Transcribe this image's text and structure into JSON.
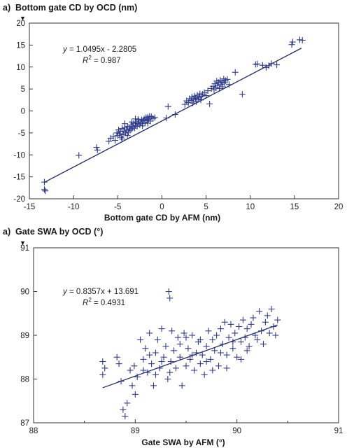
{
  "chart_data": [
    {
      "type": "scatter",
      "panel_label": "a)",
      "title": "Bottom gate CD by OCD (nm)",
      "xlabel": "Bottom gate CD by AFM (nm)",
      "ylabel": "",
      "xlim": [
        -15,
        20
      ],
      "ylim": [
        -20,
        20
      ],
      "xticks": [
        -15,
        -10,
        -5,
        0,
        5,
        10,
        15,
        20
      ],
      "yticks": [
        -20,
        -15,
        -10,
        -5,
        0,
        5,
        10,
        15,
        20
      ],
      "grid": false,
      "marker_color": "#2e3b8c",
      "fit_color": "#1f2a6e",
      "annotation": {
        "eq_prefix": "y",
        "eq_body": " = 1.0495x - 2.2805",
        "r2_prefix": "R",
        "r2_sup": "2",
        "r2_body": " = 0.987"
      },
      "fit": {
        "slope": 1.0495,
        "intercept": -2.2805,
        "x_range": [
          -13.3,
          15.8
        ]
      },
      "points": [
        [
          -13.3,
          -16.2
        ],
        [
          -13.3,
          -17.9
        ],
        [
          -13.2,
          -18.2
        ],
        [
          -9.4,
          -10.1
        ],
        [
          -7.4,
          -8.3
        ],
        [
          -7.3,
          -8.9
        ],
        [
          -6.0,
          -6.9
        ],
        [
          -5.8,
          -6.2
        ],
        [
          -5.5,
          -5.8
        ],
        [
          -5.3,
          -6.7
        ],
        [
          -5.1,
          -5.0
        ],
        [
          -5.0,
          -5.6
        ],
        [
          -4.9,
          -4.3
        ],
        [
          -4.8,
          -5.2
        ],
        [
          -4.7,
          -4.7
        ],
        [
          -4.6,
          -6.0
        ],
        [
          -4.5,
          -4.0
        ],
        [
          -4.4,
          -5.4
        ],
        [
          -4.3,
          -4.6
        ],
        [
          -4.2,
          -3.8
        ],
        [
          -4.1,
          -5.0
        ],
        [
          -4.0,
          -4.3
        ],
        [
          -3.9,
          -3.5
        ],
        [
          -3.8,
          -4.8
        ],
        [
          -3.7,
          -3.9
        ],
        [
          -3.6,
          -4.4
        ],
        [
          -3.5,
          -3.2
        ],
        [
          -3.4,
          -4.1
        ],
        [
          -3.3,
          -3.6
        ],
        [
          -3.2,
          -2.8
        ],
        [
          -3.1,
          -3.9
        ],
        [
          -3.0,
          -3.3
        ],
        [
          -2.9,
          -2.6
        ],
        [
          -2.8,
          -3.5
        ],
        [
          -2.7,
          -2.9
        ],
        [
          -2.6,
          -2.3
        ],
        [
          -2.5,
          -3.2
        ],
        [
          -2.4,
          -2.6
        ],
        [
          -2.3,
          -2.0
        ],
        [
          -2.2,
          -2.9
        ],
        [
          -2.1,
          -2.2
        ],
        [
          -2.0,
          -1.8
        ],
        [
          -1.9,
          -2.6
        ],
        [
          -1.8,
          -1.5
        ],
        [
          -1.7,
          -2.2
        ],
        [
          -1.6,
          -1.4
        ],
        [
          -1.5,
          -1.9
        ],
        [
          -1.4,
          -1.2
        ],
        [
          -1.3,
          -2.3
        ],
        [
          -1.2,
          -1.3
        ],
        [
          -1.0,
          -1.7
        ],
        [
          -4.5,
          -6.4
        ],
        [
          -3.9,
          -5.6
        ],
        [
          -3.4,
          -2.5
        ],
        [
          -2.7,
          -1.9
        ],
        [
          -2.2,
          -3.4
        ],
        [
          -1.6,
          -2.8
        ],
        [
          -0.8,
          -1.5
        ],
        [
          -4.2,
          -2.9
        ],
        [
          -3.0,
          -1.8
        ],
        [
          0.5,
          -1.6
        ],
        [
          0.7,
          1.0
        ],
        [
          1.5,
          -0.8
        ],
        [
          2.6,
          1.5
        ],
        [
          2.8,
          2.3
        ],
        [
          3.0,
          1.9
        ],
        [
          3.1,
          2.8
        ],
        [
          3.3,
          2.4
        ],
        [
          3.4,
          3.2
        ],
        [
          3.5,
          1.8
        ],
        [
          3.6,
          2.6
        ],
        [
          3.7,
          3.4
        ],
        [
          3.8,
          2.9
        ],
        [
          3.9,
          2.1
        ],
        [
          4.0,
          3.6
        ],
        [
          4.1,
          2.7
        ],
        [
          4.2,
          3.1
        ],
        [
          4.3,
          3.9
        ],
        [
          4.4,
          2.5
        ],
        [
          4.5,
          3.3
        ],
        [
          4.6,
          3.8
        ],
        [
          4.8,
          4.2
        ],
        [
          5.0,
          3.5
        ],
        [
          5.2,
          4.6
        ],
        [
          5.4,
          1.6
        ],
        [
          5.6,
          5.1
        ],
        [
          5.8,
          5.6
        ],
        [
          5.9,
          4.8
        ],
        [
          6.0,
          6.2
        ],
        [
          6.1,
          5.3
        ],
        [
          6.2,
          6.8
        ],
        [
          6.3,
          5.8
        ],
        [
          6.4,
          6.5
        ],
        [
          6.5,
          5.1
        ],
        [
          6.6,
          7.0
        ],
        [
          6.7,
          6.1
        ],
        [
          6.8,
          6.6
        ],
        [
          6.9,
          5.5
        ],
        [
          7.0,
          7.3
        ],
        [
          7.1,
          6.4
        ],
        [
          7.2,
          6.9
        ],
        [
          7.4,
          7.2
        ],
        [
          7.6,
          6.0
        ],
        [
          8.3,
          8.8
        ],
        [
          9.1,
          3.8
        ],
        [
          10.6,
          10.6
        ],
        [
          10.8,
          10.7
        ],
        [
          11.4,
          10.4
        ],
        [
          11.8,
          9.9
        ],
        [
          12.1,
          10.3
        ],
        [
          12.4,
          10.8
        ],
        [
          14.7,
          15.1
        ],
        [
          14.8,
          15.7
        ],
        [
          15.6,
          16.2
        ],
        [
          15.9,
          16.1
        ],
        [
          13.0,
          10.5
        ]
      ]
    },
    {
      "type": "scatter",
      "panel_label": "a)",
      "title": "Gate SWA by OCD (°)",
      "xlabel": "Gate SWA by AFM (°)",
      "ylabel": "",
      "xlim": [
        88,
        91
      ],
      "ylim": [
        87,
        91
      ],
      "xticks": [
        88,
        89,
        90,
        91
      ],
      "yticks": [
        87,
        88,
        89,
        90,
        91
      ],
      "xticks_minor": [
        88.5,
        89.5,
        90.5
      ],
      "grid": false,
      "marker_color": "#2e3b8c",
      "fit_color": "#1f2a6e",
      "annotation": {
        "eq_prefix": "y",
        "eq_body": " = 0.8357x + 13.691",
        "r2_prefix": "R",
        "r2_sup": "2",
        "r2_body": " = 0.4931"
      },
      "fit": {
        "slope": 0.8357,
        "intercept": 13.691,
        "x_range": [
          88.68,
          90.4
        ]
      },
      "points": [
        [
          88.68,
          88.4
        ],
        [
          88.68,
          88.1
        ],
        [
          88.7,
          88.25
        ],
        [
          88.82,
          88.5
        ],
        [
          88.84,
          88.35
        ],
        [
          88.86,
          87.95
        ],
        [
          88.88,
          87.3
        ],
        [
          88.9,
          87.15
        ],
        [
          88.92,
          87.45
        ],
        [
          88.95,
          88.2
        ],
        [
          88.97,
          87.85
        ],
        [
          88.99,
          88.3
        ],
        [
          89.0,
          87.65
        ],
        [
          89.02,
          88.05
        ],
        [
          89.05,
          88.9
        ],
        [
          89.08,
          88.45
        ],
        [
          89.1,
          88.7
        ],
        [
          89.12,
          88.15
        ],
        [
          89.14,
          89.05
        ],
        [
          89.16,
          88.35
        ],
        [
          89.18,
          87.85
        ],
        [
          89.2,
          88.6
        ],
        [
          89.22,
          88.9
        ],
        [
          89.24,
          88.25
        ],
        [
          89.26,
          89.15
        ],
        [
          89.28,
          88.5
        ],
        [
          89.3,
          88.75
        ],
        [
          89.32,
          88.0
        ],
        [
          89.33,
          90.0
        ],
        [
          89.34,
          89.85
        ],
        [
          89.35,
          88.4
        ],
        [
          89.36,
          89.1
        ],
        [
          89.38,
          88.65
        ],
        [
          89.4,
          88.25
        ],
        [
          89.42,
          88.95
        ],
        [
          89.44,
          88.5
        ],
        [
          89.46,
          87.85
        ],
        [
          89.48,
          89.05
        ],
        [
          89.5,
          88.3
        ],
        [
          89.52,
          88.7
        ],
        [
          89.54,
          88.45
        ],
        [
          89.56,
          89.0
        ],
        [
          89.58,
          88.2
        ],
        [
          89.6,
          88.6
        ],
        [
          89.62,
          88.85
        ],
        [
          89.64,
          88.35
        ],
        [
          89.66,
          88.55
        ],
        [
          89.68,
          88.1
        ],
        [
          89.7,
          88.75
        ],
        [
          89.72,
          89.1
        ],
        [
          89.74,
          88.45
        ],
        [
          89.76,
          88.9
        ],
        [
          89.78,
          88.65
        ],
        [
          89.8,
          89.0
        ],
        [
          89.82,
          88.3
        ],
        [
          89.84,
          89.15
        ],
        [
          89.86,
          88.8
        ],
        [
          89.88,
          89.3
        ],
        [
          89.9,
          88.55
        ],
        [
          89.92,
          88.95
        ],
        [
          89.94,
          89.25
        ],
        [
          89.96,
          88.7
        ],
        [
          89.98,
          89.05
        ],
        [
          90.0,
          88.5
        ],
        [
          90.02,
          89.2
        ],
        [
          90.04,
          88.85
        ],
        [
          90.06,
          89.35
        ],
        [
          90.08,
          88.95
        ],
        [
          90.1,
          89.15
        ],
        [
          90.12,
          88.75
        ],
        [
          90.14,
          89.25
        ],
        [
          90.16,
          89.4
        ],
        [
          90.18,
          89.0
        ],
        [
          90.2,
          88.9
        ],
        [
          90.22,
          89.55
        ],
        [
          90.24,
          89.1
        ],
        [
          90.26,
          88.8
        ],
        [
          90.28,
          89.3
        ],
        [
          90.3,
          89.45
        ],
        [
          90.32,
          89.05
        ],
        [
          90.34,
          89.6
        ],
        [
          90.36,
          89.2
        ],
        [
          90.38,
          89.0
        ],
        [
          90.4,
          89.35
        ],
        [
          89.08,
          88.2
        ],
        [
          89.14,
          88.55
        ],
        [
          89.2,
          88.1
        ],
        [
          89.26,
          88.4
        ],
        [
          89.34,
          88.15
        ],
        [
          89.44,
          88.8
        ],
        [
          89.5,
          88.95
        ],
        [
          89.56,
          88.55
        ],
        [
          89.64,
          88.9
        ],
        [
          89.7,
          88.4
        ],
        [
          89.76,
          88.2
        ],
        [
          89.84,
          88.6
        ],
        [
          89.9,
          88.25
        ],
        [
          89.96,
          88.85
        ],
        [
          90.04,
          88.45
        ],
        [
          90.1,
          88.65
        ]
      ]
    }
  ]
}
